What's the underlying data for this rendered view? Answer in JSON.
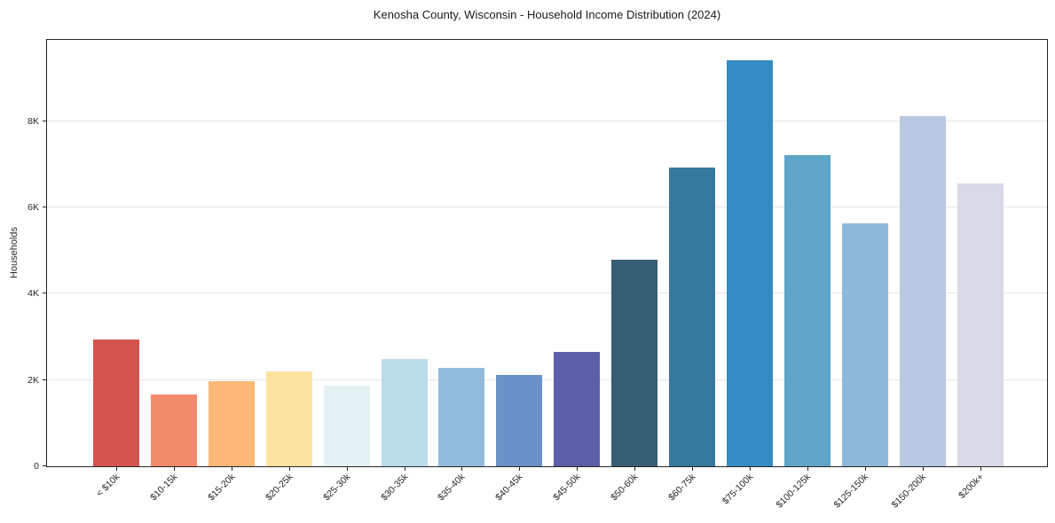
{
  "chart_data": {
    "type": "bar",
    "title": "Kenosha County, Wisconsin - Household Income Distribution (2024)",
    "xlabel": "",
    "ylabel": "Households",
    "categories": [
      "< $10k",
      "$10-15k",
      "$15-20k",
      "$20-25k",
      "$25-30k",
      "$30-35k",
      "$35-40k",
      "$40-45k",
      "$45-50k",
      "$50-60k",
      "$60-75k",
      "$75-100k",
      "$100-125k",
      "$125-150k",
      "$150-200k",
      "$200k+"
    ],
    "values": [
      2950,
      1670,
      1980,
      2210,
      1870,
      2480,
      2280,
      2110,
      2660,
      4800,
      6930,
      9410,
      7220,
      5640,
      8120,
      6560
    ],
    "bar_colors": [
      "#d4554f",
      "#f28b6c",
      "#fbb876",
      "#fde3a1",
      "#e4f1f3",
      "#bbdde9",
      "#92bbdb",
      "#6b92c7",
      "#5a5fa8",
      "#365d72",
      "#35799e",
      "#358bc4",
      "#60a6c9",
      "#8fb7da",
      "#b9c9e2",
      "#d8dae8"
    ],
    "yticks": {
      "values": [
        0,
        2000,
        4000,
        6000,
        8000
      ],
      "labels": [
        "0",
        "2K",
        "4K",
        "6K",
        "8K"
      ]
    },
    "ylim": [
      0,
      9890
    ],
    "grid": "horizontal",
    "legend": "none",
    "colors": {
      "gridline": "#e6e6e6",
      "spine": "#262626",
      "text": "#262626",
      "background": "#ffffff"
    }
  }
}
